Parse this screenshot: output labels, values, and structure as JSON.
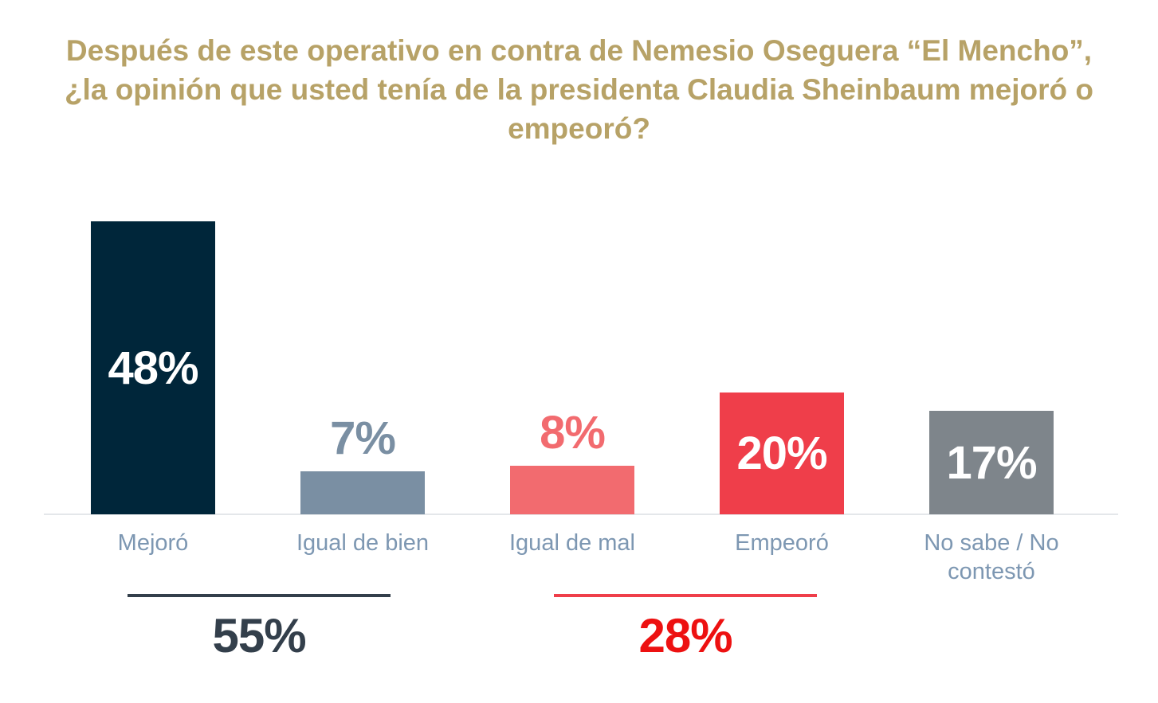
{
  "title": "Después de este operativo en contra de Nemesio Oseguera “El Mencho”, ¿la opinión que usted tenía de la presidenta Claudia Sheinbaum mejoró o empeoró?",
  "colors": {
    "title": "#B7A267",
    "category_label": "#7D97B2",
    "axis_line": "#E4E7EA"
  },
  "chart_data": {
    "type": "bar",
    "categories": [
      "Mejoró",
      "Igual de bien",
      "Igual de mal",
      "Empeoró",
      "No sabe / No contestó"
    ],
    "values": [
      48,
      7,
      8,
      20,
      17
    ],
    "value_labels": [
      "48%",
      "7%",
      "8%",
      "20%",
      "17%"
    ],
    "bar_colors": [
      "#00263A",
      "#7A8FA3",
      "#F26B6F",
      "#EF3E4A",
      "#7E858B"
    ],
    "label_placement": [
      "inside",
      "above",
      "above",
      "inside",
      "inside"
    ],
    "xlabel": "",
    "ylabel": "",
    "ylim": [
      0,
      50
    ],
    "grid": false,
    "legend": false,
    "groups": [
      {
        "label": "55%",
        "spans": [
          "Mejoró",
          "Igual de bien"
        ],
        "line_color": "#333F4B",
        "label_color": "#333F4B"
      },
      {
        "label": "28%",
        "spans": [
          "Igual de mal",
          "Empeoró"
        ],
        "line_color": "#EF3E4A",
        "label_color": "#ED1111"
      }
    ]
  }
}
